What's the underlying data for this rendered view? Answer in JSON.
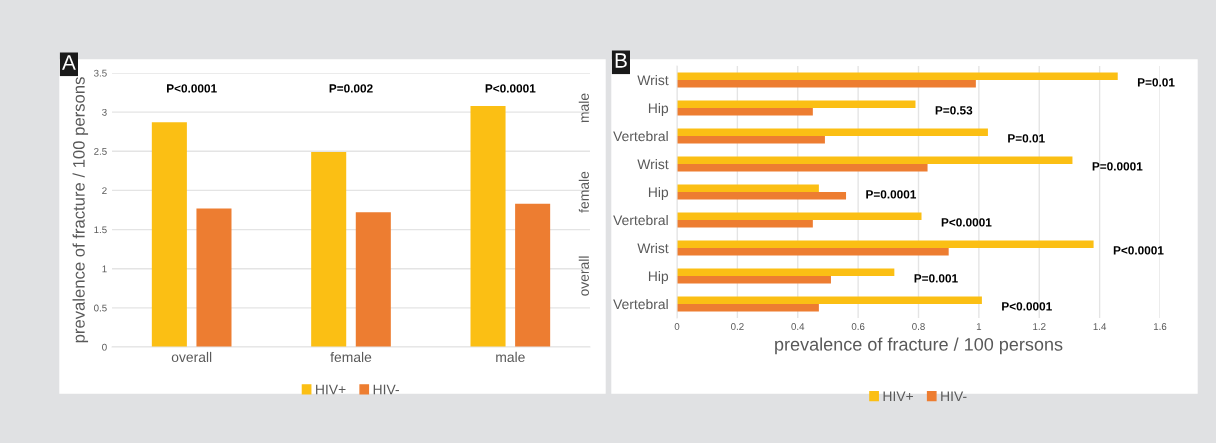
{
  "chart_data": [
    {
      "type": "bar",
      "title": "A",
      "categories": [
        "overall",
        "female",
        "male"
      ],
      "series": [
        {
          "name": "HIV+",
          "color": "#fbbf14",
          "values": [
            2.87,
            2.49,
            3.08
          ]
        },
        {
          "name": "HIV-",
          "color": "#ed7d31",
          "values": [
            1.77,
            1.72,
            1.83
          ]
        }
      ],
      "ylabel": "prevalence of fracture / 100 persons",
      "ylim": [
        0,
        3.5
      ],
      "yticks": [
        0,
        0.5,
        1,
        1.5,
        2,
        2.5,
        3,
        3.5
      ],
      "grid": "y",
      "legend": "bottom",
      "annotations": [
        "P<0.0001",
        "P=0.002",
        "P<0.0001"
      ]
    },
    {
      "type": "bar",
      "title": "B",
      "orientation": "horizontal",
      "categories": [
        "Wrist",
        "Hip",
        "Vertebral",
        "Wrist",
        "Hip",
        "Vertebral",
        "Wrist",
        "Hip",
        "Vertebral"
      ],
      "series": [
        {
          "name": "HIV+",
          "color": "#fbbf14",
          "values": [
            1.46,
            0.79,
            1.03,
            1.31,
            0.47,
            0.81,
            1.38,
            0.72,
            1.01
          ]
        },
        {
          "name": "HIV-",
          "color": "#ed7d31",
          "values": [
            0.99,
            0.45,
            0.49,
            0.83,
            0.56,
            0.45,
            0.9,
            0.51,
            0.47
          ]
        }
      ],
      "xlabel": "prevalence of fracture / 100 persons",
      "xlim": [
        0,
        1.6
      ],
      "xticks": [
        0,
        0.2,
        0.4,
        0.6,
        0.8,
        1,
        1.2,
        1.4,
        1.6
      ],
      "grid": "x",
      "legend": "bottom",
      "annotations": [
        "male",
        "female",
        "overall",
        "P=0.01",
        "P=0.53",
        "P=0.01",
        "P=0.0001",
        "P=0.0001",
        "P<0.0001",
        "P<0.0001",
        "P=0.001",
        "P<0.0001"
      ]
    }
  ]
}
